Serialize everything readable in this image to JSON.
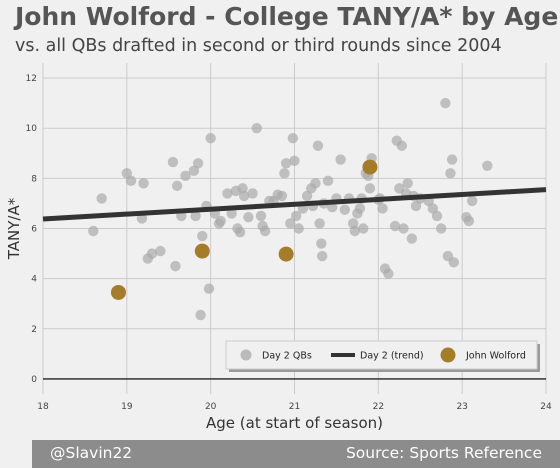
{
  "title": "John Wolford - College TANY/A* by Age",
  "subtitle": "vs. all QBs drafted in second or third rounds since 2004",
  "footer": {
    "left": "@Slavin22",
    "right": "Source: Sports Reference"
  },
  "colors": {
    "background": "#f0f0f0",
    "day2_points": "#a9a9a9",
    "trend_line": "#333333",
    "wolford": "#a57c28",
    "footer_bg": "#8c8c8c"
  },
  "chart_data": {
    "type": "scatter",
    "xlabel": "Age (at start of season)",
    "ylabel": "TANY/A*",
    "xlim": [
      18,
      24
    ],
    "ylim": [
      -0.6,
      12.6
    ],
    "x_ticks": [
      18,
      19,
      20,
      21,
      22,
      23,
      24
    ],
    "y_ticks": [
      0,
      2,
      4,
      6,
      8,
      10,
      12
    ],
    "grid": true,
    "legend_position": "bottom-right",
    "series": [
      {
        "name": "Day 2 QBs",
        "kind": "scatter",
        "points": [
          [
            18.6,
            5.9
          ],
          [
            18.7,
            7.2
          ],
          [
            19.0,
            8.2
          ],
          [
            19.05,
            7.9
          ],
          [
            19.2,
            7.8
          ],
          [
            19.18,
            6.4
          ],
          [
            19.25,
            4.8
          ],
          [
            19.3,
            5.0
          ],
          [
            19.4,
            5.1
          ],
          [
            19.55,
            8.65
          ],
          [
            19.6,
            7.7
          ],
          [
            19.65,
            6.5
          ],
          [
            19.7,
            8.1
          ],
          [
            19.58,
            4.5
          ],
          [
            19.8,
            8.3
          ],
          [
            19.82,
            6.5
          ],
          [
            19.85,
            8.6
          ],
          [
            19.9,
            5.7
          ],
          [
            19.95,
            6.9
          ],
          [
            19.88,
            2.55
          ],
          [
            20.0,
            9.6
          ],
          [
            19.98,
            3.6
          ],
          [
            20.05,
            6.6
          ],
          [
            20.1,
            6.2
          ],
          [
            20.12,
            6.3
          ],
          [
            20.2,
            7.4
          ],
          [
            20.25,
            6.6
          ],
          [
            20.3,
            7.5
          ],
          [
            20.32,
            6.0
          ],
          [
            20.35,
            5.85
          ],
          [
            20.38,
            7.6
          ],
          [
            20.4,
            7.3
          ],
          [
            20.45,
            6.45
          ],
          [
            20.5,
            7.4
          ],
          [
            20.55,
            10.0
          ],
          [
            20.6,
            6.5
          ],
          [
            20.62,
            6.1
          ],
          [
            20.65,
            5.9
          ],
          [
            20.7,
            7.1
          ],
          [
            20.75,
            7.1
          ],
          [
            20.8,
            7.35
          ],
          [
            20.85,
            7.3
          ],
          [
            20.88,
            8.2
          ],
          [
            20.9,
            8.6
          ],
          [
            20.95,
            6.2
          ],
          [
            20.98,
            9.6
          ],
          [
            21.0,
            8.7
          ],
          [
            21.02,
            6.5
          ],
          [
            21.05,
            6.0
          ],
          [
            21.1,
            6.8
          ],
          [
            21.15,
            7.3
          ],
          [
            21.2,
            7.6
          ],
          [
            21.22,
            6.9
          ],
          [
            21.25,
            7.8
          ],
          [
            21.28,
            9.3
          ],
          [
            21.3,
            6.2
          ],
          [
            21.32,
            5.4
          ],
          [
            21.33,
            4.9
          ],
          [
            21.35,
            7.0
          ],
          [
            21.4,
            7.9
          ],
          [
            21.45,
            6.85
          ],
          [
            21.5,
            7.2
          ],
          [
            21.55,
            8.75
          ],
          [
            21.6,
            6.75
          ],
          [
            21.65,
            7.2
          ],
          [
            21.7,
            6.2
          ],
          [
            21.72,
            5.9
          ],
          [
            21.75,
            6.6
          ],
          [
            21.78,
            6.8
          ],
          [
            21.8,
            7.2
          ],
          [
            21.82,
            6.0
          ],
          [
            21.85,
            8.2
          ],
          [
            21.88,
            8.1
          ],
          [
            21.9,
            7.6
          ],
          [
            21.92,
            8.8
          ],
          [
            22.0,
            7.15
          ],
          [
            22.02,
            7.2
          ],
          [
            22.05,
            6.8
          ],
          [
            22.08,
            4.4
          ],
          [
            22.12,
            4.2
          ],
          [
            22.2,
            6.1
          ],
          [
            22.22,
            9.5
          ],
          [
            22.25,
            7.6
          ],
          [
            22.28,
            9.3
          ],
          [
            22.3,
            6.0
          ],
          [
            22.33,
            7.4
          ],
          [
            22.35,
            7.8
          ],
          [
            22.4,
            5.6
          ],
          [
            22.42,
            7.3
          ],
          [
            22.45,
            6.9
          ],
          [
            22.5,
            7.2
          ],
          [
            22.6,
            7.1
          ],
          [
            22.65,
            6.8
          ],
          [
            22.7,
            6.5
          ],
          [
            22.75,
            6.0
          ],
          [
            22.8,
            11.0
          ],
          [
            22.83,
            4.9
          ],
          [
            22.86,
            8.2
          ],
          [
            22.88,
            8.75
          ],
          [
            22.9,
            4.65
          ],
          [
            23.05,
            6.45
          ],
          [
            23.08,
            6.3
          ],
          [
            23.12,
            7.1
          ],
          [
            23.3,
            8.5
          ]
        ]
      },
      {
        "name": "Day 2 (trend)",
        "kind": "line",
        "points": [
          [
            18,
            6.38
          ],
          [
            24,
            7.55
          ]
        ]
      },
      {
        "name": "John Wolford",
        "kind": "scatter",
        "points": [
          [
            18.9,
            3.45
          ],
          [
            19.9,
            5.1
          ],
          [
            20.9,
            4.98
          ],
          [
            21.9,
            8.45
          ]
        ]
      }
    ]
  }
}
